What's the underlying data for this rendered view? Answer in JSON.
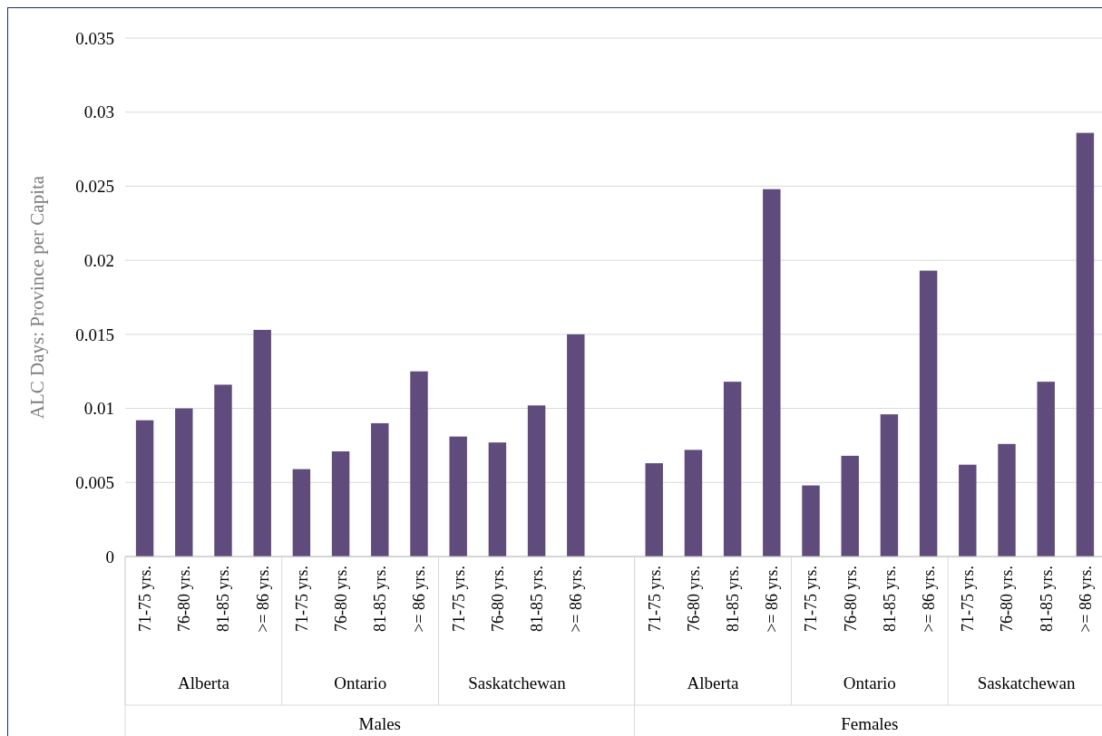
{
  "chart_data": {
    "type": "bar",
    "ylabel": "ALC Days: Province per Capita",
    "categories": [
      "71-75 yrs.",
      "76-80 yrs.",
      "81-85 yrs.",
      ">= 86 yrs.",
      "71-75 yrs.",
      "76-80 yrs.",
      "81-85 yrs.",
      ">= 86 yrs.",
      "71-75 yrs.",
      "76-80 yrs.",
      "81-85 yrs.",
      ">= 86 yrs.",
      null,
      "71-75 yrs.",
      "76-80 yrs.",
      "81-85 yrs.",
      ">= 86 yrs.",
      "71-75 yrs.",
      "76-80 yrs.",
      "81-85 yrs.",
      ">= 86 yrs.",
      "71-75 yrs.",
      "76-80 yrs.",
      "81-85 yrs.",
      ">= 86 yrs."
    ],
    "series": [
      {
        "color": "#604c7c",
        "values": [
          0.0092,
          0.01,
          0.0116,
          0.0153,
          0.0059,
          0.0071,
          0.009,
          0.0125,
          0.0081,
          0.0077,
          0.0102,
          0.015,
          null,
          0.0063,
          0.0072,
          0.0118,
          0.0248,
          0.0048,
          0.0068,
          0.0096,
          0.0193,
          0.0062,
          0.0076,
          0.0118,
          0.0286
        ]
      }
    ],
    "ylim": [
      0,
      0.035
    ],
    "yticks": [
      0,
      0.005,
      0.01,
      0.015,
      0.02,
      0.025,
      0.03,
      0.035
    ],
    "grid": "y",
    "annotations": [
      "Alberta",
      "Ontario",
      "Saskatchewan",
      "Alberta",
      "Ontario",
      "Saskatchewan",
      "Males",
      "Females"
    ]
  }
}
